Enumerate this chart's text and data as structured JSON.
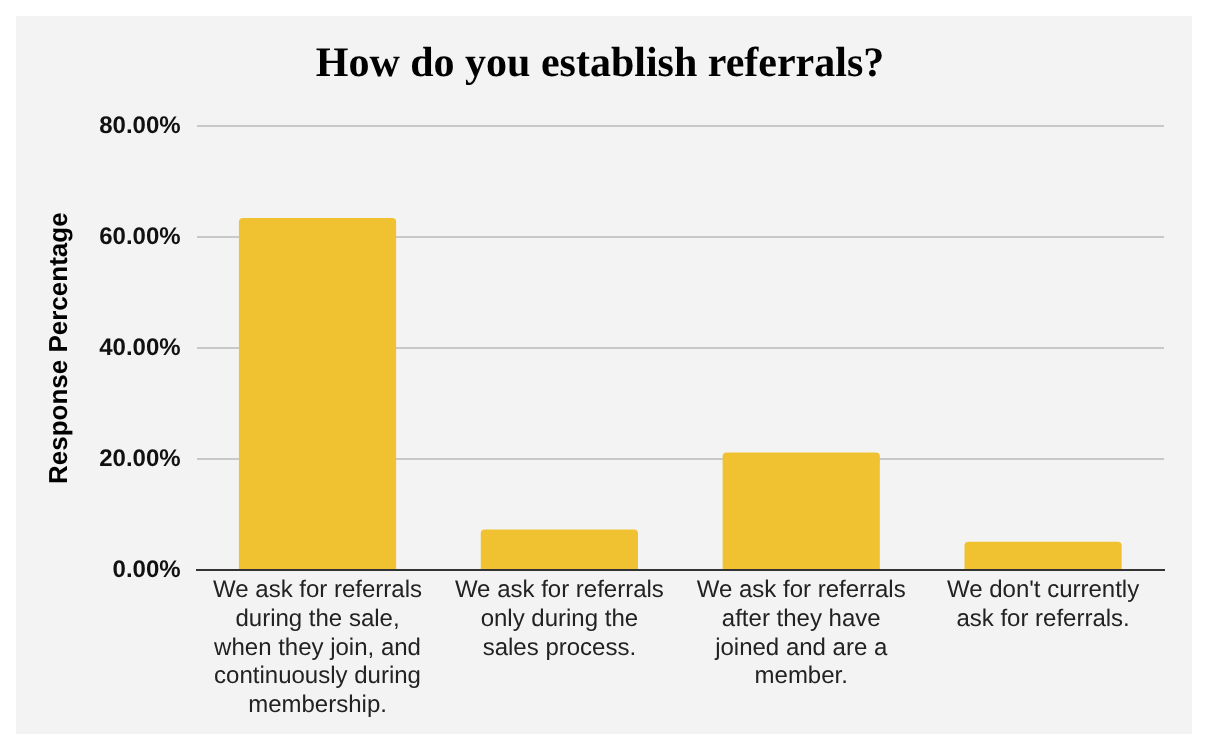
{
  "chart_data": {
    "type": "bar",
    "title": "How do you establish referrals?",
    "ylabel": "Response Percentage",
    "categories": [
      "We ask for referrals during the sale, when they join, and continuously during membership.",
      "We ask for referrals only during the sales process.",
      "We ask for referrals after they have joined and are a member.",
      "We don't currently ask for referrals."
    ],
    "values": [
      63.5,
      7.3,
      21.2,
      5.1
    ],
    "color": "#f0c232",
    "ylim": [
      0,
      80
    ],
    "yticks": [
      {
        "value": 0,
        "label": "0.00%"
      },
      {
        "value": 20,
        "label": "20.00%"
      },
      {
        "value": 40,
        "label": "40.00%"
      },
      {
        "value": 60,
        "label": "60.00%"
      },
      {
        "value": 80,
        "label": "80.00%"
      }
    ],
    "grid": "y",
    "legend": false
  }
}
